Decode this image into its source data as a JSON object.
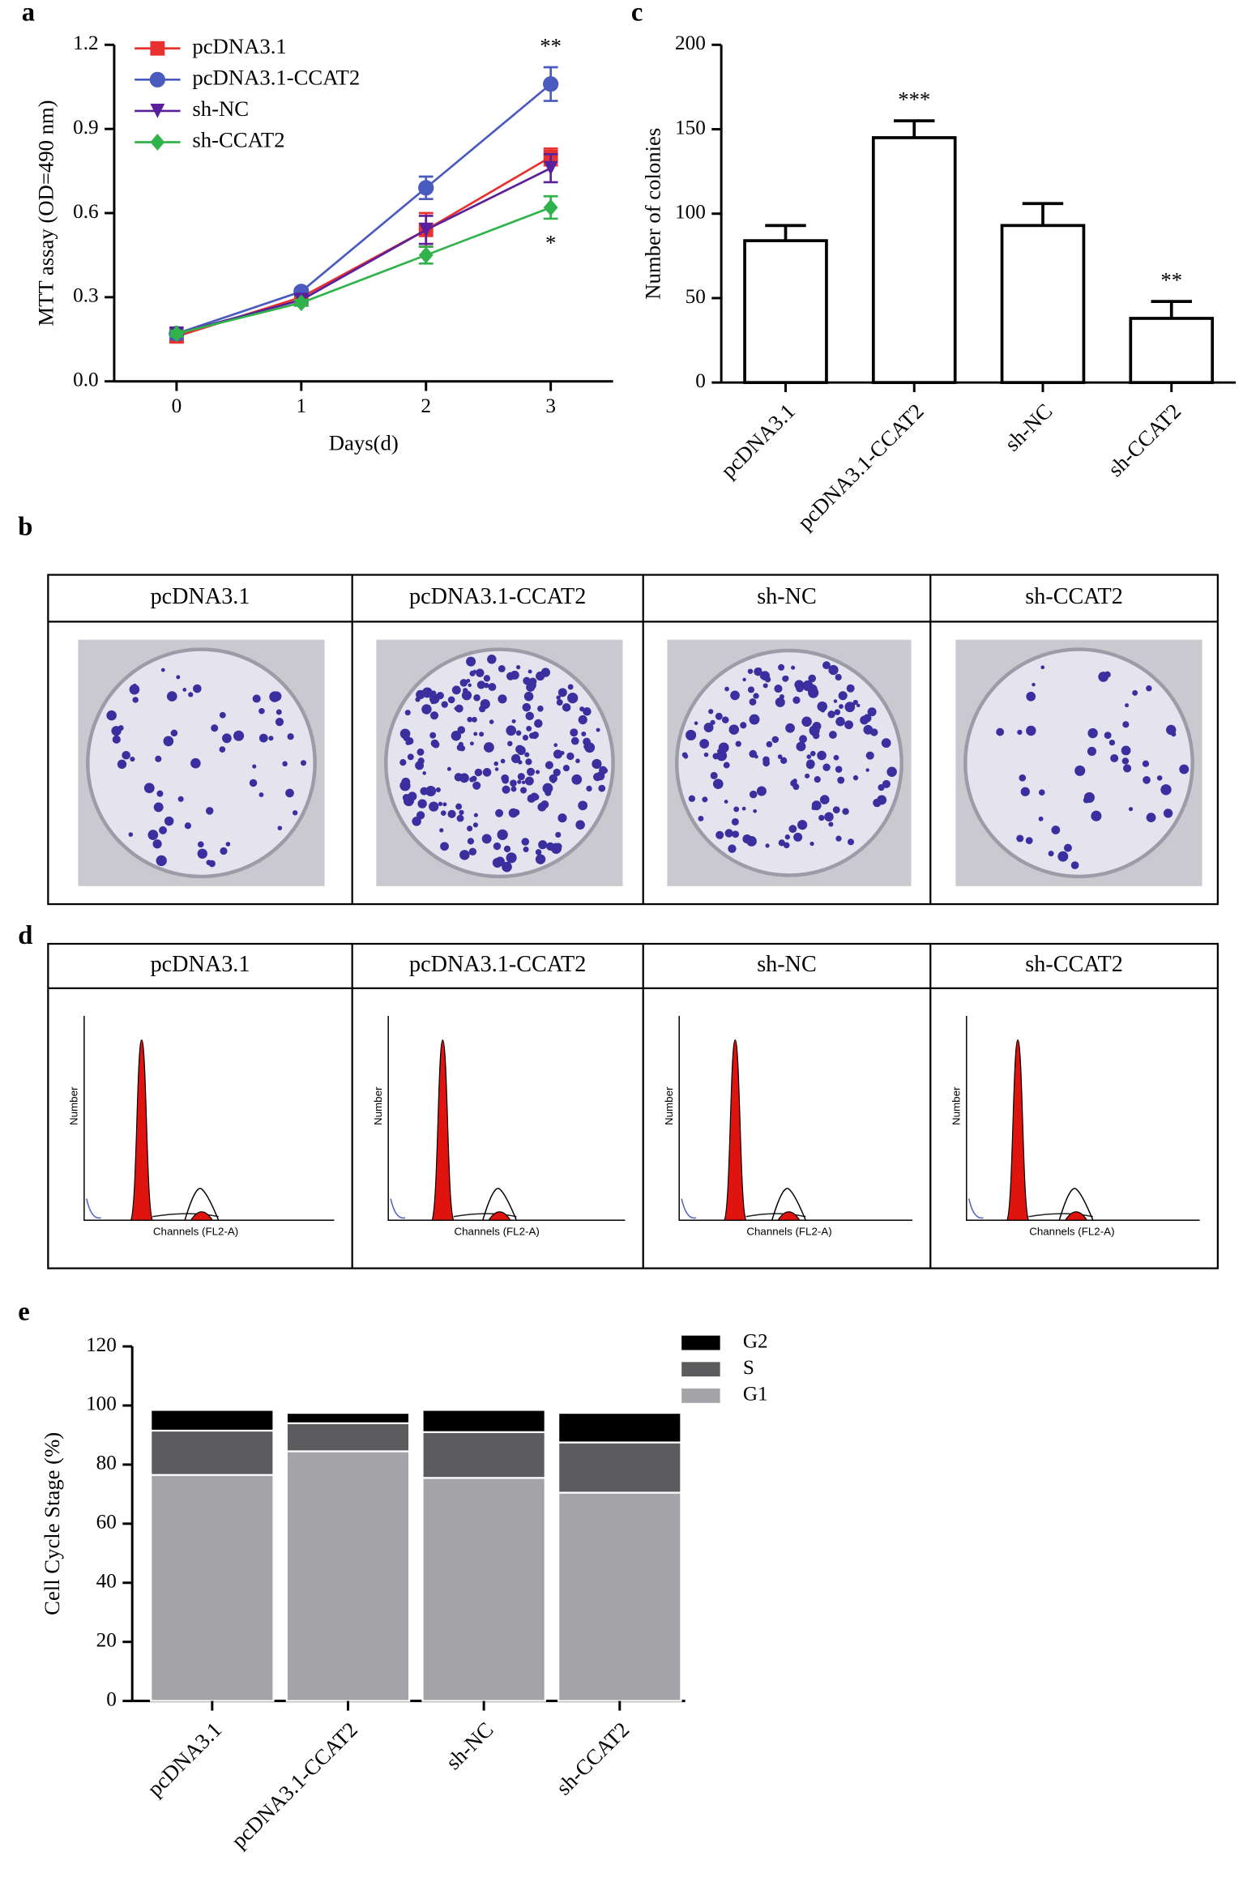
{
  "chart_data": [
    {
      "type": "line",
      "panel_label": "a",
      "x_label": "Days(d)",
      "y_label": "MTT assay (OD=490 nm)",
      "x": [
        0,
        1,
        2,
        3
      ],
      "xlim": [
        -0.5,
        3.5
      ],
      "xticks": [
        0,
        1,
        2,
        3
      ],
      "ylim": [
        0,
        1.2
      ],
      "yticks": [
        {
          "value": 0,
          "label": "0.0"
        },
        0.3,
        0.6,
        0.9,
        1.2
      ],
      "series": [
        {
          "name": "pcDNA3.1",
          "color": "#e8312f",
          "marker": "square",
          "values": [
            0.16,
            0.3,
            0.54,
            0.8
          ],
          "errors": [
            0.02,
            0.02,
            0.06,
            0.03
          ],
          "annotations": [
            null,
            null,
            null,
            null
          ]
        },
        {
          "name": "pcDNA3.1-CCAT2",
          "color": "#4a5bbf",
          "marker": "circle",
          "values": [
            0.17,
            0.32,
            0.69,
            1.06
          ],
          "errors": [
            0.02,
            0.01,
            0.04,
            0.06
          ],
          "annotations": [
            null,
            null,
            null,
            "**"
          ]
        },
        {
          "name": "sh-NC",
          "color": "#5a1f9a",
          "marker": "triangle",
          "values": [
            0.17,
            0.29,
            0.54,
            0.76
          ],
          "errors": [
            0.01,
            0.02,
            0.05,
            0.05
          ],
          "annotations": [
            null,
            null,
            null,
            null
          ]
        },
        {
          "name": "sh-CCAT2",
          "color": "#2fb34a",
          "marker": "diamond",
          "values": [
            0.17,
            0.28,
            0.45,
            0.62
          ],
          "errors": [
            0.01,
            0.01,
            0.03,
            0.04
          ],
          "annotations": [
            null,
            null,
            null,
            "*"
          ]
        }
      ]
    },
    {
      "type": "bar",
      "panel_label": "c",
      "y_label": "Number of colonies",
      "categories": [
        "pcDNA3.1",
        "pcDNA3.1-CCAT2",
        "sh-NC",
        "sh-CCAT2"
      ],
      "values": [
        84,
        145,
        93,
        38
      ],
      "errors": [
        9,
        10,
        13,
        10
      ],
      "annotations": [
        null,
        "***",
        null,
        "**"
      ],
      "color": "#ffffff",
      "ylim": [
        0,
        200
      ],
      "yticks": [
        0,
        50,
        100,
        150,
        200
      ]
    },
    {
      "type": "stacked_bar",
      "panel_label": "e",
      "y_label": "Cell Cycle Stage (%)",
      "categories": [
        "pcDNA3.1",
        "pcDNA3.1-CCAT2",
        "sh-NC",
        "sh-CCAT2"
      ],
      "series": [
        {
          "name": "G1",
          "color": "#a4a4a8",
          "values": [
            76.5,
            84.5,
            75.5,
            70.5
          ]
        },
        {
          "name": "S",
          "color": "#5c5c5e",
          "values": [
            15,
            9.5,
            15.5,
            17
          ]
        },
        {
          "name": "G2",
          "color": "#000000",
          "values": [
            7,
            3.5,
            7.5,
            10
          ]
        }
      ],
      "ylim": [
        0,
        120
      ],
      "yticks": [
        0,
        20,
        40,
        60,
        80,
        100,
        120
      ]
    }
  ],
  "colony_panel": {
    "label": "b",
    "headers": [
      "pcDNA3.1",
      "pcDNA3.1-CCAT2",
      "sh-NC",
      "sh-CCAT2"
    ]
  },
  "flow_panel": {
    "label": "d",
    "headers": [
      "pcDNA3.1",
      "pcDNA3.1-CCAT2",
      "sh-NC",
      "sh-CCAT2"
    ],
    "y_label": "Number",
    "x_label": "Channels (FL2-A)"
  }
}
